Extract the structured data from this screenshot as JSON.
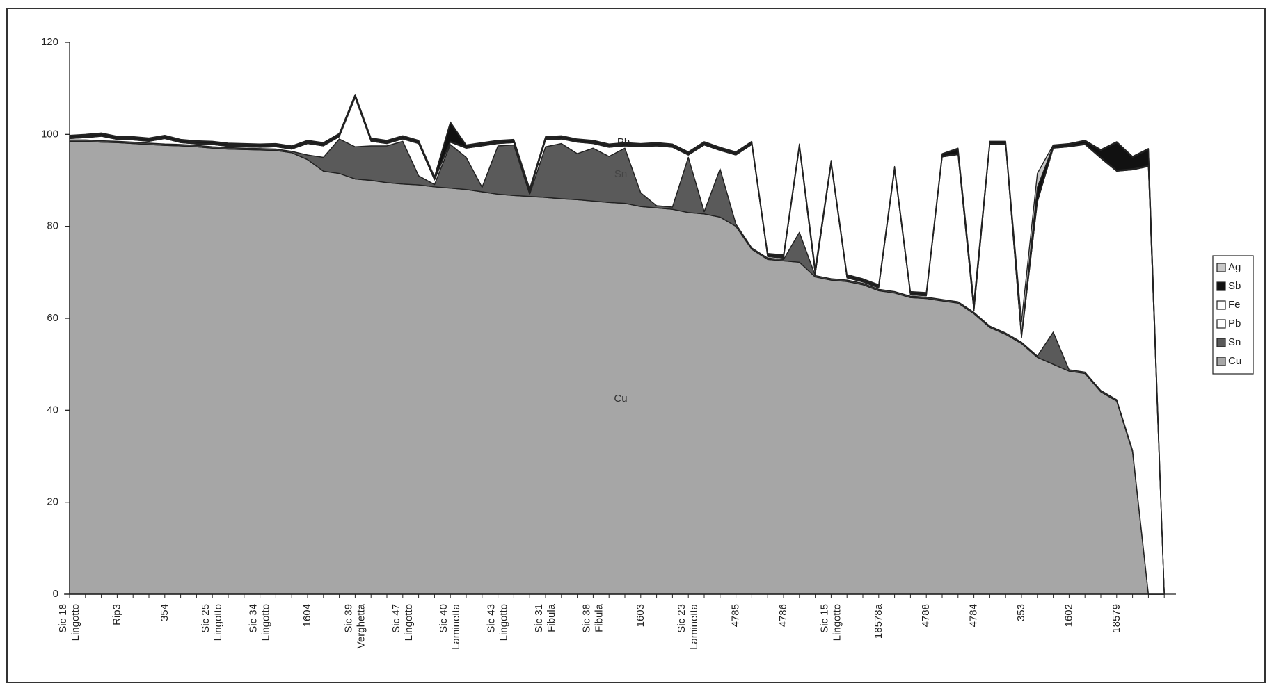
{
  "chart_data": {
    "type": "stacked-area",
    "categories": [
      [
        "Sic 18",
        "Lingotto"
      ],
      null,
      null,
      [
        "Rip3"
      ],
      null,
      null,
      [
        "354"
      ],
      null,
      null,
      [
        "Sic 25",
        "Lingotto"
      ],
      null,
      null,
      [
        "Sic 34",
        "Lingotto"
      ],
      null,
      null,
      [
        "1604"
      ],
      null,
      null,
      [
        "Sic 39",
        "Verghetta"
      ],
      null,
      null,
      [
        "Sic 47",
        "Lingotto"
      ],
      null,
      null,
      [
        "Sic 40",
        "Laminetta"
      ],
      null,
      null,
      [
        "Sic 43",
        "Lingotto"
      ],
      null,
      null,
      [
        "Sic 31",
        "Fibula"
      ],
      null,
      null,
      [
        "Sic 38",
        "Fibula"
      ],
      null,
      null,
      [
        "1603"
      ],
      null,
      null,
      [
        "Sic 23",
        "Laminetta"
      ],
      null,
      null,
      [
        "4785"
      ],
      null,
      null,
      [
        "4786"
      ],
      null,
      null,
      [
        "Sic 15",
        "Lingotto"
      ],
      null,
      null,
      [
        "18578a"
      ],
      null,
      null,
      [
        "4788"
      ],
      null,
      null,
      [
        "4784"
      ],
      null,
      null,
      [
        "353"
      ],
      null,
      null,
      [
        "1602"
      ],
      null,
      null,
      [
        "18579"
      ],
      null,
      null,
      null
    ],
    "series": [
      {
        "name": "Cu",
        "color": "#a6a6a6",
        "values": [
          98.5,
          98.5,
          98.3,
          98.2,
          98,
          97.8,
          97.6,
          97.5,
          97.3,
          97,
          96.8,
          96.7,
          96.6,
          96.5,
          96,
          94.5,
          92,
          91.5,
          90.3,
          90,
          89.5,
          89.2,
          89,
          88.6,
          88.3,
          88,
          87.5,
          87,
          86.7,
          86.5,
          86.3,
          86,
          85.8,
          85.5,
          85.2,
          85,
          84.3,
          84,
          83.7,
          83,
          82.7,
          82,
          80,
          75,
          72.8,
          72.5,
          72.2,
          69,
          68.3,
          68,
          67.3,
          66,
          65.5,
          64.5,
          64.3,
          63.8,
          63.3,
          61,
          58,
          56.5,
          54.5,
          51.5,
          50,
          48.5,
          48,
          44,
          42,
          31,
          0,
          0
        ]
      },
      {
        "name": "Sn",
        "color": "#5a5a5a",
        "values": [
          0.3,
          0.3,
          0.3,
          0.3,
          0.3,
          0.3,
          0.3,
          0.3,
          0.3,
          0.3,
          0.3,
          0.3,
          0.3,
          0.3,
          0.3,
          1,
          3,
          7.5,
          7,
          7.5,
          8,
          9.3,
          2,
          0.5,
          9.5,
          7,
          1,
          10.5,
          11,
          0.5,
          11,
          12,
          10,
          11.5,
          10,
          12,
          3,
          0.5,
          0.5,
          12,
          0.5,
          10.5,
          0.5,
          0.3,
          0.3,
          0.3,
          6.5,
          0.3,
          0.3,
          0.3,
          0.3,
          0.3,
          0.3,
          0.3,
          0.3,
          0.3,
          0.3,
          0.3,
          0.3,
          0.3,
          0.3,
          0.3,
          7,
          0.3,
          0.3,
          0.3,
          0.3,
          0.3,
          0,
          0
        ]
      },
      {
        "name": "Pb",
        "color": "#ffffff",
        "values": [
          0.3,
          0.5,
          1,
          0.4,
          0.5,
          0.4,
          1.2,
          0.4,
          0.3,
          0.5,
          0.3,
          0.3,
          0.3,
          0.5,
          0.5,
          2.5,
          2.5,
          0.5,
          10.7,
          1,
          0.5,
          0.5,
          7,
          1,
          0.5,
          2,
          9,
          0.5,
          0.5,
          0.5,
          1.5,
          1,
          2.5,
          1,
          2,
          0.5,
          10,
          13,
          13,
          0.5,
          14.5,
          4,
          15,
          22.5,
          0.3,
          0.3,
          18.5,
          0.3,
          25,
          0.5,
          0.3,
          0.3,
          26.5,
          0.3,
          0.3,
          31,
          32,
          0.3,
          39.5,
          41,
          1,
          33.5,
          40,
          48.5,
          49.5,
          50.5,
          49.7,
          61,
          93,
          0
        ]
      },
      {
        "name": "Fe",
        "color": "#ffffff",
        "values": [
          0.2,
          0.2,
          0.2,
          0.2,
          0.2,
          0.2,
          0.2,
          0.2,
          0.2,
          0.2,
          0.2,
          0.2,
          0.2,
          0.2,
          0.2,
          0.2,
          0.2,
          0.2,
          0.2,
          0.2,
          0.2,
          0.2,
          0.2,
          0.2,
          0.2,
          0.2,
          0.2,
          0.2,
          0.2,
          0.2,
          0.2,
          0.2,
          0.2,
          0.2,
          0.2,
          0.2,
          0.2,
          0.2,
          0.2,
          0.2,
          0.2,
          0.2,
          0.2,
          0.2,
          0.2,
          0.2,
          0.2,
          0.2,
          0.2,
          0.2,
          0.2,
          0.2,
          0.2,
          0.2,
          0.2,
          0.2,
          0.2,
          0.2,
          0.2,
          0.2,
          0.2,
          0.2,
          0.2,
          0.2,
          0.2,
          0.2,
          0.2,
          0.2,
          0.2,
          0
        ]
      },
      {
        "name": "Sb",
        "color": "#111111",
        "values": [
          0.3,
          0.3,
          0.3,
          0.3,
          0.3,
          0.3,
          0.3,
          0.3,
          0.3,
          0.3,
          0.3,
          0.3,
          0.3,
          0.3,
          0.3,
          0.3,
          0.3,
          0.3,
          0.3,
          0.3,
          0.3,
          0.3,
          0.3,
          0.3,
          4,
          0.3,
          0.3,
          0.3,
          0.3,
          0.3,
          0.3,
          0.3,
          0.3,
          0.3,
          0.3,
          0.3,
          0.3,
          0.3,
          0.3,
          0.3,
          0.3,
          0.3,
          0.3,
          0.3,
          0.3,
          0.3,
          0.3,
          0.8,
          0.3,
          0.3,
          0.3,
          0.3,
          0.3,
          0.3,
          0.3,
          0.3,
          1,
          1.5,
          0.3,
          0.3,
          0.3,
          3,
          0.3,
          0.3,
          0.5,
          1.5,
          6,
          2.5,
          3.5,
          0
        ]
      },
      {
        "name": "Ag",
        "color": "#c8c8c8",
        "values": [
          0.2,
          0.2,
          0.2,
          0.2,
          0.2,
          0.2,
          0.2,
          0.2,
          0.2,
          0.2,
          0.2,
          0.2,
          0.2,
          0.2,
          0.2,
          0.2,
          0.2,
          0.2,
          0.2,
          0.2,
          0.2,
          0.2,
          0.2,
          0.2,
          0.2,
          0.2,
          0.2,
          0.2,
          0.2,
          0.2,
          0.2,
          0.2,
          0.2,
          0.2,
          0.2,
          0.2,
          0.2,
          0.2,
          0.2,
          0.2,
          0.2,
          0.2,
          0.2,
          0.2,
          0.2,
          0.2,
          0.2,
          0.2,
          0.2,
          0.2,
          0.2,
          0.2,
          0.2,
          0.2,
          0.2,
          0.2,
          0.2,
          0.2,
          0.2,
          0.2,
          3,
          3,
          0.2,
          0.2,
          0.2,
          0.2,
          0.2,
          0.2,
          0.2,
          0
        ]
      }
    ],
    "annotations": [
      "Cu",
      "Sn",
      "Pb"
    ],
    "ylim": [
      0,
      120
    ],
    "yticks": [
      0,
      20,
      40,
      60,
      80,
      100,
      120
    ],
    "legend": "right"
  }
}
